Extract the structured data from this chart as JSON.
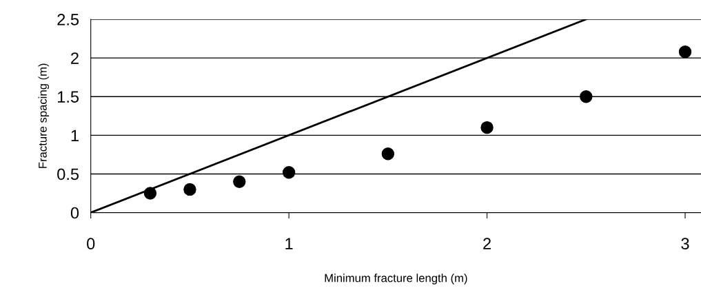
{
  "chart_data": {
    "type": "scatter",
    "xlabel": "Minimum fracture length (m)",
    "ylabel": "Fracture spacing (m)",
    "x": [
      0.3,
      0.5,
      0.75,
      1.0,
      1.5,
      2.0,
      2.5,
      3.0
    ],
    "series": [
      {
        "color": "#000000",
        "marker": "circle",
        "values": [
          0.25,
          0.3,
          0.4,
          0.52,
          0.76,
          1.1,
          1.5,
          2.08
        ]
      },
      {
        "type": "line",
        "color": "#000000",
        "marker": "none",
        "line_style": "solid",
        "x": [
          0,
          2.5
        ],
        "values": [
          0,
          2.5
        ]
      }
    ],
    "xlim": [
      0,
      3.08
    ],
    "ylim": [
      0,
      2.5
    ],
    "xticks": [
      0,
      1,
      2,
      3
    ],
    "yticks": [
      0,
      0.5,
      1,
      1.5,
      2,
      2.5
    ],
    "grid": "y",
    "legend": false
  }
}
